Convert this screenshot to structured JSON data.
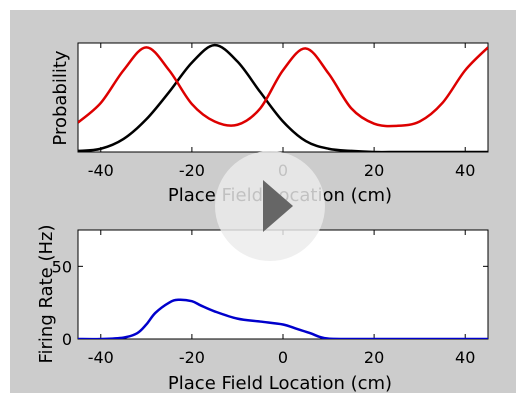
{
  "chart_data": [
    {
      "type": "line",
      "xlabel": "Place Field Location (cm)",
      "ylabel": "Probability",
      "xlim": [
        -45,
        45
      ],
      "ylim": [
        0,
        1
      ],
      "x_ticks": [
        -40,
        -20,
        0,
        20,
        40
      ],
      "y_ticks": [],
      "x_tick_labels": [
        "-40",
        "-20",
        "0",
        "20",
        "40"
      ],
      "grid": false,
      "series": [
        {
          "color": "#000000",
          "x": [
            -45,
            -40,
            -35,
            -30,
            -25,
            -20,
            -15,
            -10,
            -5,
            0,
            5,
            10,
            15,
            20,
            25,
            30,
            35,
            40,
            45
          ],
          "values": [
            0.01,
            0.03,
            0.12,
            0.3,
            0.55,
            0.82,
            0.98,
            0.83,
            0.55,
            0.28,
            0.1,
            0.03,
            0.01,
            0.0,
            0.0,
            0.0,
            0.0,
            0.0,
            0.0
          ]
        },
        {
          "color": "#dd0000",
          "x": [
            -45,
            -40,
            -35,
            -30,
            -25,
            -20,
            -15,
            -10,
            -5,
            0,
            5,
            10,
            15,
            20,
            25,
            30,
            35,
            40,
            45
          ],
          "values": [
            0.27,
            0.45,
            0.75,
            0.96,
            0.75,
            0.44,
            0.28,
            0.25,
            0.4,
            0.75,
            0.95,
            0.72,
            0.4,
            0.26,
            0.24,
            0.28,
            0.45,
            0.75,
            0.96
          ]
        }
      ]
    },
    {
      "type": "line",
      "xlabel": "Place Field Location (cm)",
      "ylabel": "Firing Rate (Hz)",
      "xlim": [
        -45,
        45
      ],
      "ylim": [
        0,
        75
      ],
      "x_ticks": [
        -40,
        -20,
        0,
        20,
        40
      ],
      "y_ticks": [
        0,
        50
      ],
      "x_tick_labels": [
        "-40",
        "-20",
        "0",
        "20",
        "40"
      ],
      "y_tick_labels": [
        "0",
        "50"
      ],
      "grid": false,
      "series": [
        {
          "color": "#0000cc",
          "x": [
            -45,
            -40,
            -35,
            -32,
            -30,
            -28,
            -25,
            -23,
            -20,
            -18,
            -15,
            -10,
            -5,
            0,
            3,
            6,
            8,
            10,
            15,
            20,
            30,
            40,
            45
          ],
          "values": [
            0,
            0,
            1,
            4,
            10,
            18,
            25,
            27,
            26,
            23,
            19,
            14,
            12,
            10,
            7,
            4,
            1.5,
            0.3,
            0,
            0,
            0,
            0,
            0
          ]
        }
      ]
    }
  ],
  "player": {
    "play_icon": "play-icon"
  }
}
